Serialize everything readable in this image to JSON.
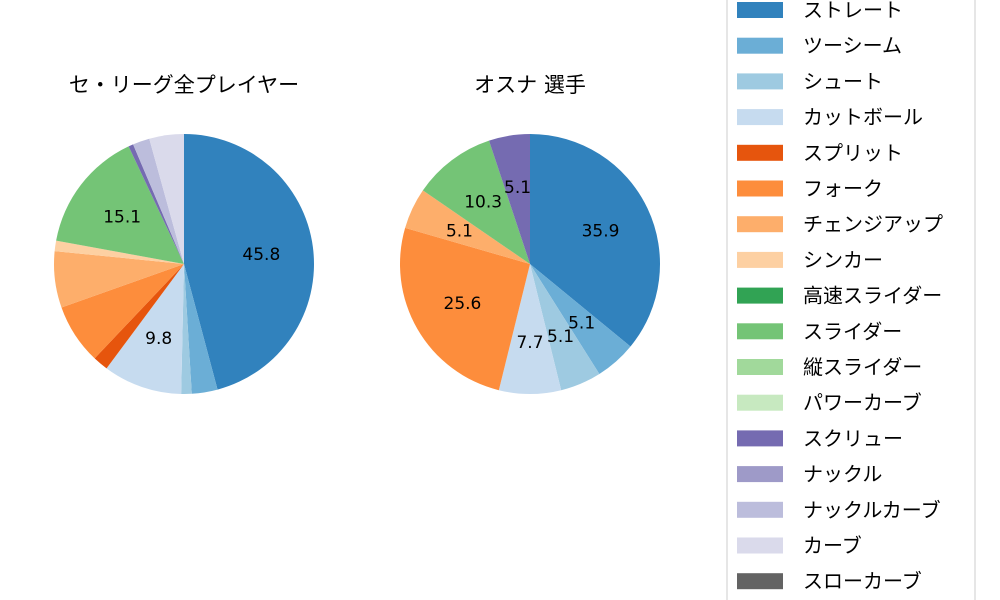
{
  "chart_data": [
    {
      "type": "pie",
      "title": "セ・リーグ全プレイヤー",
      "categories": [
        "ストレート",
        "ツーシーム",
        "シュート",
        "カットボール",
        "スプリット",
        "フォーク",
        "チェンジアップ",
        "シンカー",
        "高速スライダー",
        "スライダー",
        "縦スライダー",
        "パワーカーブ",
        "スクリュー",
        "ナックル",
        "ナックルカーブ",
        "カーブ",
        "スローカーブ"
      ],
      "values": [
        45.8,
        3.2,
        1.3,
        9.8,
        1.9,
        7.5,
        7.0,
        1.3,
        0,
        15.1,
        0,
        0,
        0.6,
        0,
        2.1,
        4.3,
        0
      ],
      "data_labels": [
        {
          "category": "ストレート",
          "text": "45.8"
        },
        {
          "category": "カットボール",
          "text": "9.8"
        },
        {
          "category": "スライダー",
          "text": "15.1"
        }
      ]
    },
    {
      "type": "pie",
      "title": "オスナ  選手",
      "categories": [
        "ストレート",
        "ツーシーム",
        "シュート",
        "カットボール",
        "スプリット",
        "フォーク",
        "チェンジアップ",
        "シンカー",
        "高速スライダー",
        "スライダー",
        "縦スライダー",
        "パワーカーブ",
        "スクリュー",
        "ナックル",
        "ナックルカーブ",
        "カーブ",
        "スローカーブ"
      ],
      "values": [
        35.9,
        5.1,
        5.1,
        7.7,
        0,
        25.6,
        5.1,
        0,
        0,
        10.3,
        0,
        0,
        5.1,
        0,
        0,
        0,
        0
      ],
      "data_labels": [
        {
          "category": "ストレート",
          "text": "35.9"
        },
        {
          "category": "ツーシーム",
          "text": "5.1"
        },
        {
          "category": "シュート",
          "text": "5.1"
        },
        {
          "category": "カットボール",
          "text": "7.7"
        },
        {
          "category": "フォーク",
          "text": "25.6"
        },
        {
          "category": "チェンジアップ",
          "text": "5.1"
        },
        {
          "category": "スライダー",
          "text": "10.3"
        },
        {
          "category": "スクリュー",
          "text": "5.1"
        }
      ]
    }
  ],
  "legend": {
    "placement": "right",
    "items": [
      {
        "label": "ストレート",
        "color": "#3182bd"
      },
      {
        "label": "ツーシーム",
        "color": "#6baed6"
      },
      {
        "label": "シュート",
        "color": "#9ecae1"
      },
      {
        "label": "カットボール",
        "color": "#c6dbef"
      },
      {
        "label": "スプリット",
        "color": "#e6550d"
      },
      {
        "label": "フォーク",
        "color": "#fd8d3c"
      },
      {
        "label": "チェンジアップ",
        "color": "#fdae6b"
      },
      {
        "label": "シンカー",
        "color": "#fdd0a2"
      },
      {
        "label": "高速スライダー",
        "color": "#31a354"
      },
      {
        "label": "スライダー",
        "color": "#74c476"
      },
      {
        "label": "縦スライダー",
        "color": "#a1d99b"
      },
      {
        "label": "パワーカーブ",
        "color": "#c7e9c0"
      },
      {
        "label": "スクリュー",
        "color": "#756bb1"
      },
      {
        "label": "ナックル",
        "color": "#9e9ac8"
      },
      {
        "label": "ナックルカーブ",
        "color": "#bcbddc"
      },
      {
        "label": "カーブ",
        "color": "#dadaeb"
      },
      {
        "label": "スローカーブ",
        "color": "#636363"
      }
    ]
  }
}
